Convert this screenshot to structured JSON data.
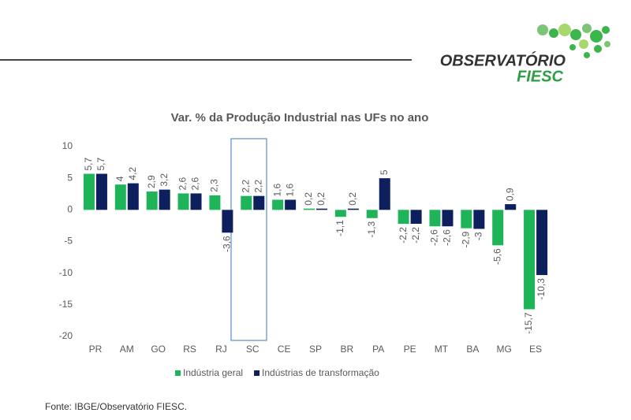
{
  "header": {
    "logo_line1": "OBSERVATÓRIO",
    "logo_line2": "FIESC"
  },
  "chart_data": {
    "type": "bar",
    "title": "Var. % da Produção Industrial nas UFs no ano",
    "categories": [
      "PR",
      "AM",
      "GO",
      "RS",
      "RJ",
      "SC",
      "CE",
      "SP",
      "BR",
      "PA",
      "PE",
      "MT",
      "BA",
      "MG",
      "ES"
    ],
    "series": [
      {
        "name": "Indústria geral",
        "color": "#1fb35a",
        "values": [
          5.7,
          4,
          2.9,
          2.6,
          2.3,
          2.2,
          1.6,
          0.2,
          -1.1,
          -1.3,
          -2.2,
          -2.6,
          -2.9,
          -5.6,
          -15.7
        ],
        "value_labels": [
          "5,7",
          "4",
          "2,9",
          "2,6",
          "2,3",
          "2,2",
          "1,6",
          "0,2",
          "-1,1",
          "-1,3",
          "-2,2",
          "-2,6",
          "-2,9",
          "-5,6",
          "-15,7"
        ]
      },
      {
        "name": "Indústrias de transformação",
        "color": "#0d1f5c",
        "values": [
          5.7,
          4.2,
          3.2,
          2.6,
          -3.6,
          2.2,
          1.6,
          0.2,
          0.2,
          5,
          -2.2,
          -2.6,
          -3,
          0.9,
          -10.3
        ],
        "value_labels": [
          "5,7",
          "4,2",
          "3,2",
          "2,6",
          "-3,6",
          "2,2",
          "1,6",
          "0,2",
          "0,2",
          "5",
          "-2,2",
          "-2,6",
          "-3",
          "0,9",
          "-10,3"
        ]
      }
    ],
    "ylim": [
      -20,
      10
    ],
    "yticks": [
      10,
      5,
      0,
      -5,
      -10,
      -15,
      -20
    ],
    "grid": false,
    "legend": "bottom"
  },
  "footer": {
    "source": "Fonte: IBGE/Observatório FIESC."
  }
}
